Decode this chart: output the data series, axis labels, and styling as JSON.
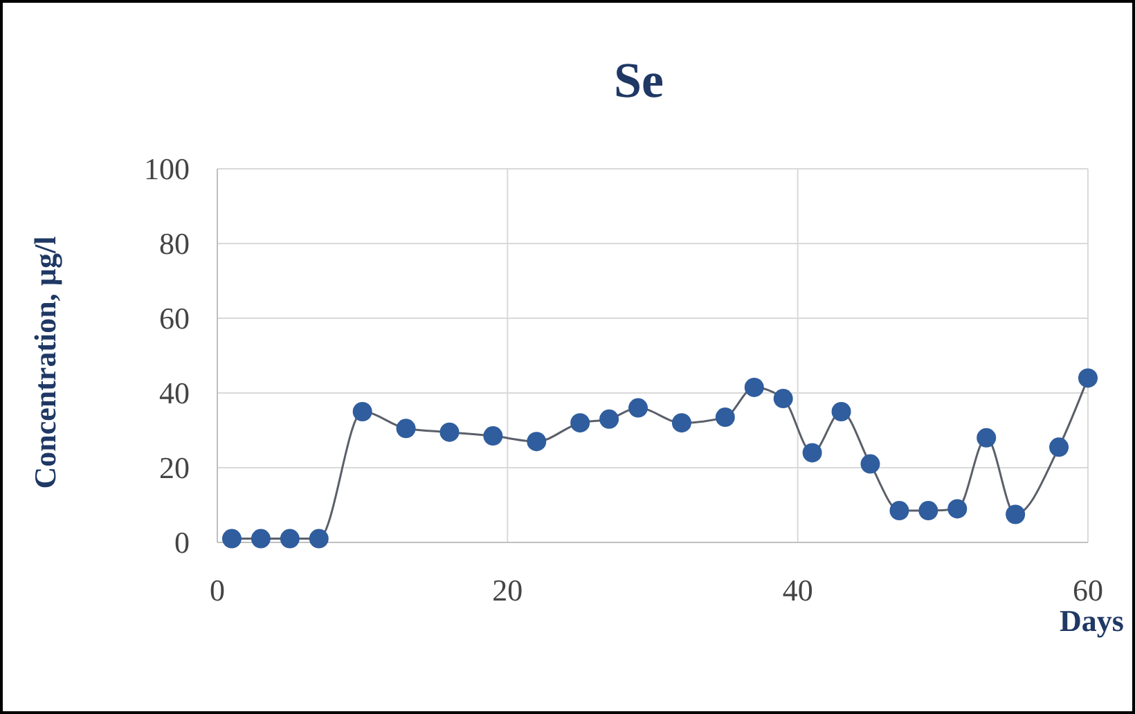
{
  "chart_data": {
    "type": "line",
    "title": "Se",
    "xlabel": "Days",
    "ylabel": "Concentration, µg/l",
    "x": [
      1,
      3,
      5,
      7,
      10,
      13,
      16,
      19,
      22,
      25,
      27,
      29,
      32,
      35,
      37,
      39,
      41,
      43,
      45,
      47,
      49,
      51,
      53,
      55,
      58,
      60
    ],
    "series": [
      {
        "color": "#2f5d9e",
        "values": [
          1,
          1,
          1,
          1,
          35,
          30.5,
          29.5,
          28.5,
          27,
          32,
          33,
          36,
          32,
          33.5,
          41.5,
          38.5,
          24,
          35,
          21,
          8.5,
          8.5,
          9,
          28,
          7.5,
          25.5,
          44
        ]
      }
    ],
    "xlim": [
      0,
      60
    ],
    "xticks": [
      0,
      20,
      40,
      60
    ],
    "ylim": [
      0,
      100
    ],
    "yticks": [
      0,
      20,
      40,
      60,
      80,
      100
    ],
    "grid": true,
    "marker": "circle",
    "line_style": "solid"
  }
}
